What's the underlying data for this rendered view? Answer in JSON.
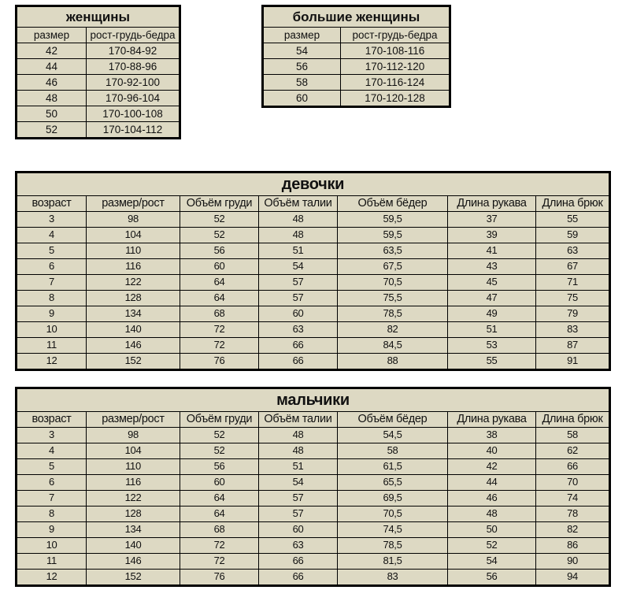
{
  "colors": {
    "cell_background": "#ddd9c3",
    "border": "#000000",
    "text": "#111111",
    "page_background": "#ffffff"
  },
  "tables": {
    "women": {
      "title": "женщины",
      "headers": [
        "размер",
        "рост-грудь-бедра"
      ],
      "rows": [
        [
          "42",
          "170-84-92"
        ],
        [
          "44",
          "170-88-96"
        ],
        [
          "46",
          "170-92-100"
        ],
        [
          "48",
          "170-96-104"
        ],
        [
          "50",
          "170-100-108"
        ],
        [
          "52",
          "170-104-112"
        ]
      ]
    },
    "large_women": {
      "title": "большие женщины",
      "headers": [
        "размер",
        "рост-грудь-бедра"
      ],
      "rows": [
        [
          "54",
          "170-108-116"
        ],
        [
          "56",
          "170-112-120"
        ],
        [
          "58",
          "170-116-124"
        ],
        [
          "60",
          "170-120-128"
        ]
      ]
    },
    "girls": {
      "title": "девочки",
      "headers": [
        "возраст",
        "размер/рост",
        "Объём груди",
        "Объём талии",
        "Объём бёдер",
        "Длина рукава",
        "Длина брюк"
      ],
      "rows": [
        [
          "3",
          "98",
          "52",
          "48",
          "59,5",
          "37",
          "55"
        ],
        [
          "4",
          "104",
          "52",
          "48",
          "59,5",
          "39",
          "59"
        ],
        [
          "5",
          "110",
          "56",
          "51",
          "63,5",
          "41",
          "63"
        ],
        [
          "6",
          "116",
          "60",
          "54",
          "67,5",
          "43",
          "67"
        ],
        [
          "7",
          "122",
          "64",
          "57",
          "70,5",
          "45",
          "71"
        ],
        [
          "8",
          "128",
          "64",
          "57",
          "75,5",
          "47",
          "75"
        ],
        [
          "9",
          "134",
          "68",
          "60",
          "78,5",
          "49",
          "79"
        ],
        [
          "10",
          "140",
          "72",
          "63",
          "82",
          "51",
          "83"
        ],
        [
          "11",
          "146",
          "72",
          "66",
          "84,5",
          "53",
          "87"
        ],
        [
          "12",
          "152",
          "76",
          "66",
          "88",
          "55",
          "91"
        ]
      ]
    },
    "boys": {
      "title": "мальчики",
      "headers": [
        "возраст",
        "размер/рост",
        "Объём груди",
        "Объём талии",
        "Объём бёдер",
        "Длина рукава",
        "Длина брюк"
      ],
      "rows": [
        [
          "3",
          "98",
          "52",
          "48",
          "54,5",
          "38",
          "58"
        ],
        [
          "4",
          "104",
          "52",
          "48",
          "58",
          "40",
          "62"
        ],
        [
          "5",
          "110",
          "56",
          "51",
          "61,5",
          "42",
          "66"
        ],
        [
          "6",
          "116",
          "60",
          "54",
          "65,5",
          "44",
          "70"
        ],
        [
          "7",
          "122",
          "64",
          "57",
          "69,5",
          "46",
          "74"
        ],
        [
          "8",
          "128",
          "64",
          "57",
          "70,5",
          "48",
          "78"
        ],
        [
          "9",
          "134",
          "68",
          "60",
          "74,5",
          "50",
          "82"
        ],
        [
          "10",
          "140",
          "72",
          "63",
          "78,5",
          "52",
          "86"
        ],
        [
          "11",
          "146",
          "72",
          "66",
          "81,5",
          "54",
          "90"
        ],
        [
          "12",
          "152",
          "76",
          "66",
          "83",
          "56",
          "94"
        ]
      ]
    }
  }
}
